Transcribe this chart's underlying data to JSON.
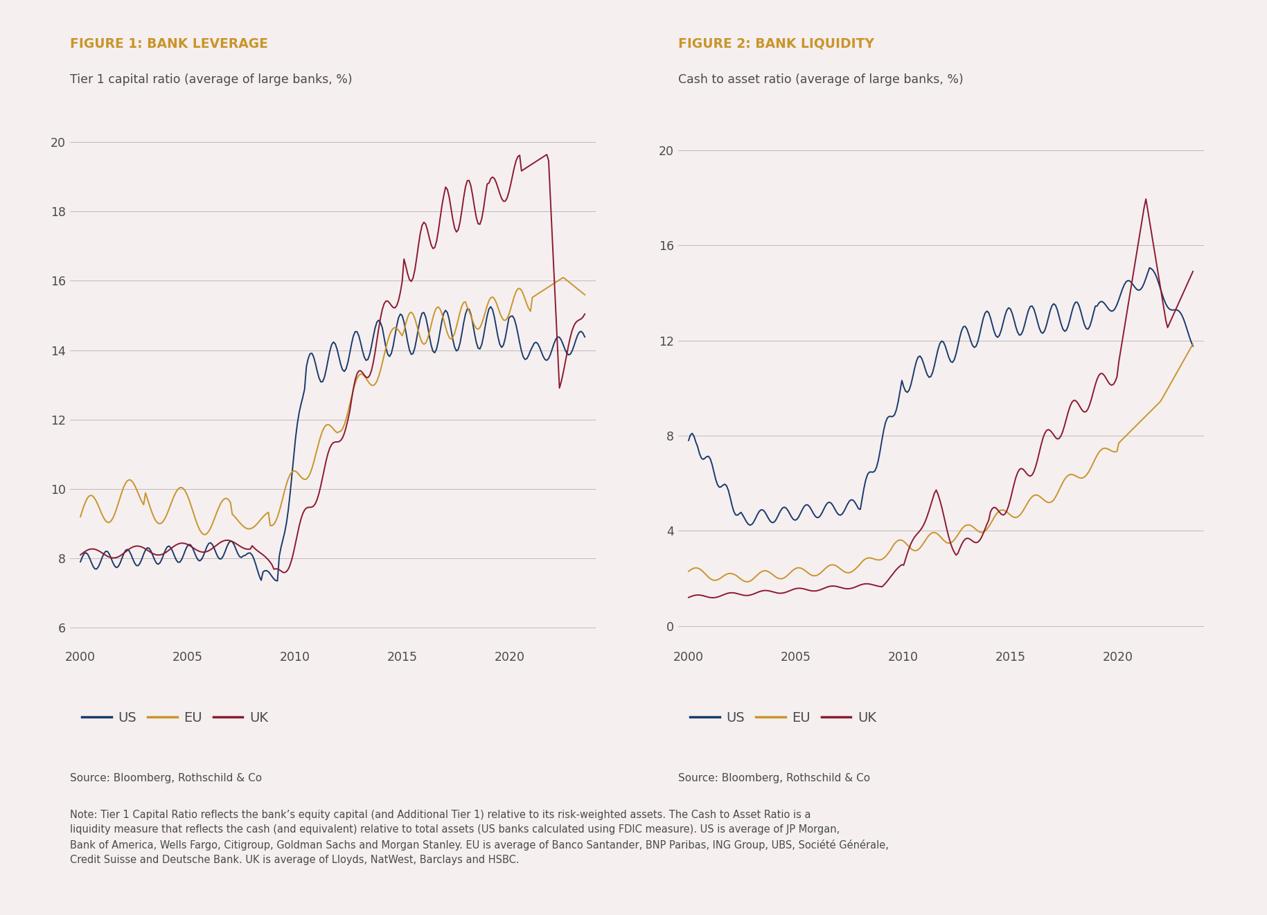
{
  "fig1_title": "FIGURE 1: BANK LEVERAGE",
  "fig1_subtitle": "Tier 1 capital ratio (average of large banks, %)",
  "fig2_title": "FIGURE 2: BANK LIQUIDITY",
  "fig2_subtitle": "Cash to asset ratio (average of large banks, %)",
  "source_text": "Source: Bloomberg, Rothschild & Co",
  "note_text": "Note: Tier 1 Capital Ratio reflects the bank’s equity capital (and Additional Tier 1) relative to its risk-weighted assets. The Cash to Asset Ratio is a liquidity measure that reflects the cash (and equivalent) relative to total assets (US banks calculated using FDIC measure). US is average of JP Morgan, Bank of America, Wells Fargo, Citigroup, Goldman Sachs and Morgan Stanley. EU is average of Banco Santander, BNP Paribas, ING Group, UBS, Société Générale, Credit Suisse and Deutsche Bank. UK is average of Lloyds, NatWest, Barclays and HSBC.",
  "background_color": "#f5eff0",
  "us_color": "#1a3a6b",
  "eu_color": "#c9952a",
  "uk_color": "#8b1a2e",
  "title_color": "#c9952a",
  "text_color": "#4a4a4a",
  "fig1_yticks": [
    6,
    8,
    10,
    12,
    14,
    16,
    18,
    20
  ],
  "fig1_ylim": [
    5.5,
    20.8
  ],
  "fig2_yticks": [
    0,
    4,
    8,
    12,
    16,
    20
  ],
  "fig2_ylim": [
    -0.8,
    21.5
  ],
  "xticks": [
    2000,
    2005,
    2010,
    2015,
    2020
  ],
  "xlim": [
    1999.5,
    2024.0
  ]
}
